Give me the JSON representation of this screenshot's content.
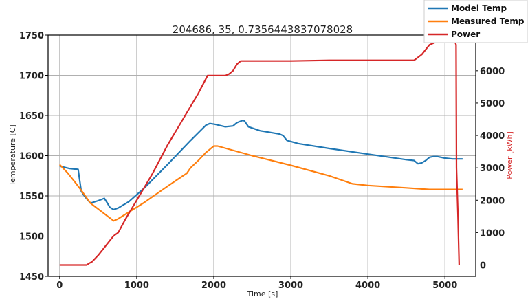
{
  "chart_data": {
    "type": "line",
    "title": "204686, 35, 0.7356443837078028",
    "xlabel": "Time [s]",
    "ylabel": "Temperature [C]",
    "y2label": "Power [kWh]",
    "xlim": [
      -150,
      5400
    ],
    "ylim": [
      1450,
      1750
    ],
    "y2lim": [
      -350,
      7100
    ],
    "xticks": [
      0,
      1000,
      2000,
      3000,
      4000,
      5000
    ],
    "yticks": [
      1450,
      1500,
      1550,
      1600,
      1650,
      1700,
      1750
    ],
    "y2ticks": [
      0,
      1000,
      2000,
      3000,
      4000,
      5000,
      6000,
      7000
    ],
    "grid": true,
    "legend_position": "top-right",
    "series": [
      {
        "name": "Model Temp",
        "axis": "left",
        "color": "#1f77b4",
        "x": [
          0,
          130,
          240,
          280,
          320,
          400,
          500,
          580,
          620,
          650,
          700,
          760,
          900,
          1100,
          1400,
          1700,
          1900,
          1950,
          2020,
          2150,
          2250,
          2300,
          2380,
          2400,
          2450,
          2600,
          2850,
          2900,
          2950,
          3100,
          3500,
          4000,
          4500,
          4600,
          4650,
          4700,
          4750,
          4800,
          4850,
          4900,
          5000,
          5100,
          5230
        ],
        "y": [
          1587,
          1584,
          1583,
          1556,
          1550,
          1541,
          1544,
          1547,
          1541,
          1536,
          1533,
          1535,
          1543,
          1560,
          1589,
          1619,
          1638,
          1640,
          1639,
          1636,
          1637,
          1641,
          1644,
          1643,
          1636,
          1631,
          1627,
          1625,
          1619,
          1615,
          1609,
          1602,
          1595,
          1594,
          1590,
          1591,
          1594,
          1598,
          1599,
          1599,
          1597,
          1596,
          1596
        ]
      },
      {
        "name": "Measured Temp",
        "axis": "left",
        "color": "#ff7f0e",
        "x": [
          0,
          100,
          200,
          280,
          400,
          550,
          700,
          750,
          1100,
          1400,
          1600,
          1650,
          1700,
          1800,
          1900,
          2000,
          2050,
          2500,
          3000,
          3500,
          3800,
          4000,
          4500,
          4800,
          5000,
          5230
        ],
        "y": [
          1589,
          1579,
          1567,
          1557,
          1541,
          1530,
          1519,
          1521,
          1542,
          1562,
          1575,
          1578,
          1585,
          1594,
          1604,
          1612,
          1612,
          1600,
          1588,
          1575,
          1565,
          1563,
          1560,
          1558,
          1558,
          1558
        ]
      },
      {
        "name": "Power",
        "axis": "right",
        "color": "#d62728",
        "x": [
          0,
          350,
          380,
          420,
          500,
          600,
          700,
          760,
          850,
          1000,
          1200,
          1400,
          1600,
          1800,
          1920,
          2000,
          2150,
          2200,
          2250,
          2300,
          2350,
          2500,
          3000,
          3500,
          4000,
          4600,
          4700,
          4800,
          4900,
          5000,
          5050,
          5130,
          5145,
          5150,
          5170,
          5180,
          5185
        ],
        "y": [
          0,
          0,
          50,
          100,
          300,
          600,
          900,
          1000,
          1400,
          2000,
          2800,
          3700,
          4500,
          5300,
          5850,
          5850,
          5850,
          5900,
          6000,
          6200,
          6300,
          6300,
          6300,
          6320,
          6320,
          6320,
          6500,
          6800,
          6900,
          6900,
          6900,
          6900,
          6800,
          3000,
          1500,
          500,
          0
        ]
      }
    ],
    "legend": [
      "Model Temp",
      "Measured Temp",
      "Power"
    ]
  }
}
